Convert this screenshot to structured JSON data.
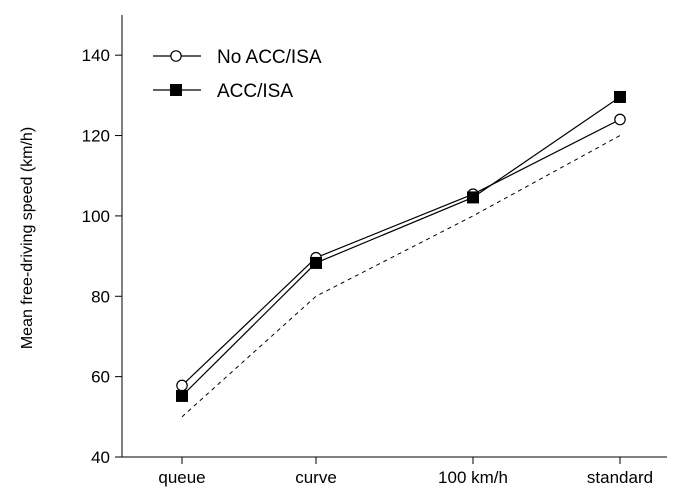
{
  "chart_data": {
    "type": "line",
    "title": "",
    "xlabel": "",
    "ylabel": "Mean free-driving speed (km/h)",
    "categories": [
      "queue",
      "curve",
      "100 km/h",
      "standard"
    ],
    "ylim": [
      40,
      150
    ],
    "yticks": [
      40,
      60,
      80,
      100,
      120,
      140
    ],
    "grid": false,
    "legend_position": "top-left",
    "series": [
      {
        "name": "No ACC/ISA",
        "values": [
          57.8,
          89.6,
          105.4,
          124.0
        ],
        "marker": "open-circle",
        "line_style": "solid",
        "color": "#000000"
      },
      {
        "name": "ACC/ISA",
        "values": [
          55.2,
          88.3,
          104.6,
          129.6
        ],
        "marker": "filled-square",
        "line_style": "solid",
        "color": "#000000"
      }
    ],
    "reference_line": {
      "values": [
        50,
        80,
        100,
        120
      ],
      "line_style": "dashed",
      "color": "#000000"
    }
  }
}
